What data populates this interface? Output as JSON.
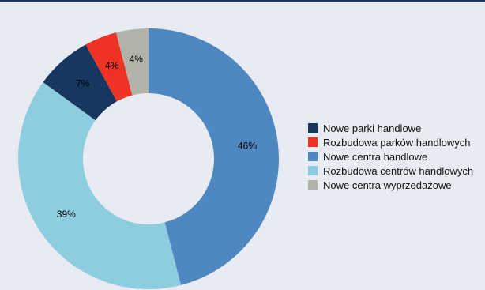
{
  "chart_data": {
    "type": "pie",
    "donut": true,
    "categories": [
      "Nowe centra handlowe",
      "Rozbudowa centrów handlowych",
      "Nowe parki handlowe",
      "Rozbudowa parków handlowych",
      "Nowe centra wyprzedażowe"
    ],
    "values": [
      46,
      39,
      7,
      4,
      4
    ],
    "labels": [
      "46%",
      "39%",
      "7%",
      "4%",
      "4%"
    ],
    "colors": [
      "#4f88c0",
      "#8ecde0",
      "#17375e",
      "#ee3324",
      "#b2b2a8"
    ],
    "legend_position": "right"
  },
  "legend": [
    {
      "label": "Nowe parki handlowe",
      "color": "#17375e"
    },
    {
      "label": "Rozbudowa parków handlowych",
      "color": "#ee3324"
    },
    {
      "label": "Nowe centra handlowe",
      "color": "#4f88c0"
    },
    {
      "label": "Rozbudowa centrów handlowych",
      "color": "#8ecde0"
    },
    {
      "label": "Nowe centra wyprzedażowe",
      "color": "#b2b2a8"
    }
  ]
}
